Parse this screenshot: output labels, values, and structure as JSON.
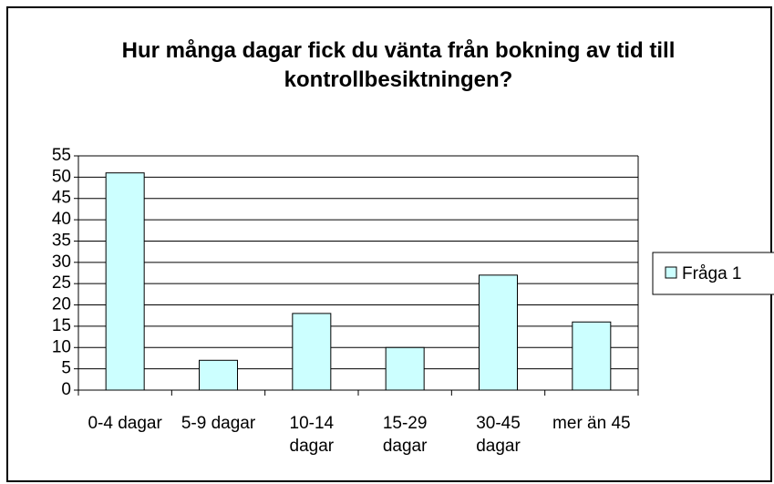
{
  "chart_data": {
    "type": "bar",
    "title": "Hur många dagar fick du vänta från bokning av tid till kontrollbesiktningen?",
    "categories": [
      "0-4 dagar",
      "5-9 dagar",
      "10-14 dagar",
      "15-29 dagar",
      "30-45 dagar",
      "mer än 45"
    ],
    "series": [
      {
        "name": "Fråga 1",
        "color": "#ccffff",
        "values": [
          51,
          7,
          18,
          10,
          27,
          16
        ]
      }
    ],
    "ylim": [
      0,
      55
    ],
    "yticks": [
      0,
      5,
      10,
      15,
      20,
      25,
      30,
      35,
      40,
      45,
      50,
      55
    ],
    "grid": true,
    "legend": "right"
  }
}
